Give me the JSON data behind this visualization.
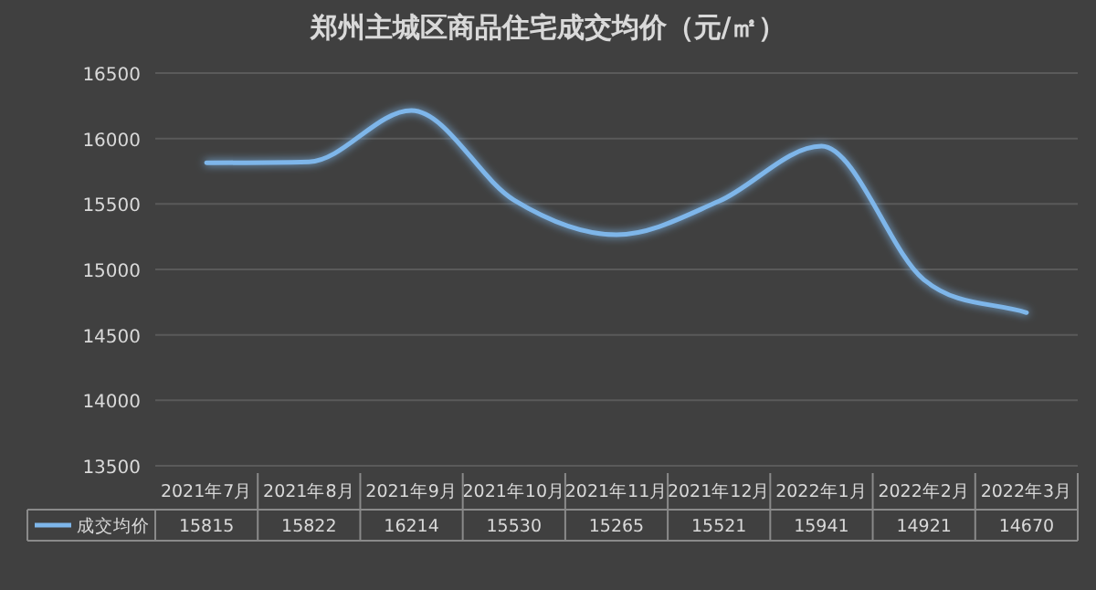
{
  "chart_data": {
    "type": "line",
    "title": "郑州主城区商品住宅成交均价（元/㎡）",
    "categories": [
      "2021年7月",
      "2021年8月",
      "2021年9月",
      "2021年10月",
      "2021年11月",
      "2021年12月",
      "2022年1月",
      "2022年2月",
      "2022年3月"
    ],
    "series": [
      {
        "name": "成交均价",
        "color": "#7eb6ea",
        "values": [
          15815,
          15822,
          16214,
          15530,
          15265,
          15521,
          15941,
          14921,
          14670
        ]
      }
    ],
    "ylim": [
      13500,
      16500
    ],
    "yticks": [
      13500,
      14000,
      14500,
      15000,
      15500,
      16000,
      16500
    ],
    "grid": "y",
    "legend": "bottom left",
    "data_labels": true,
    "marker": "none",
    "line_style": "solid"
  }
}
